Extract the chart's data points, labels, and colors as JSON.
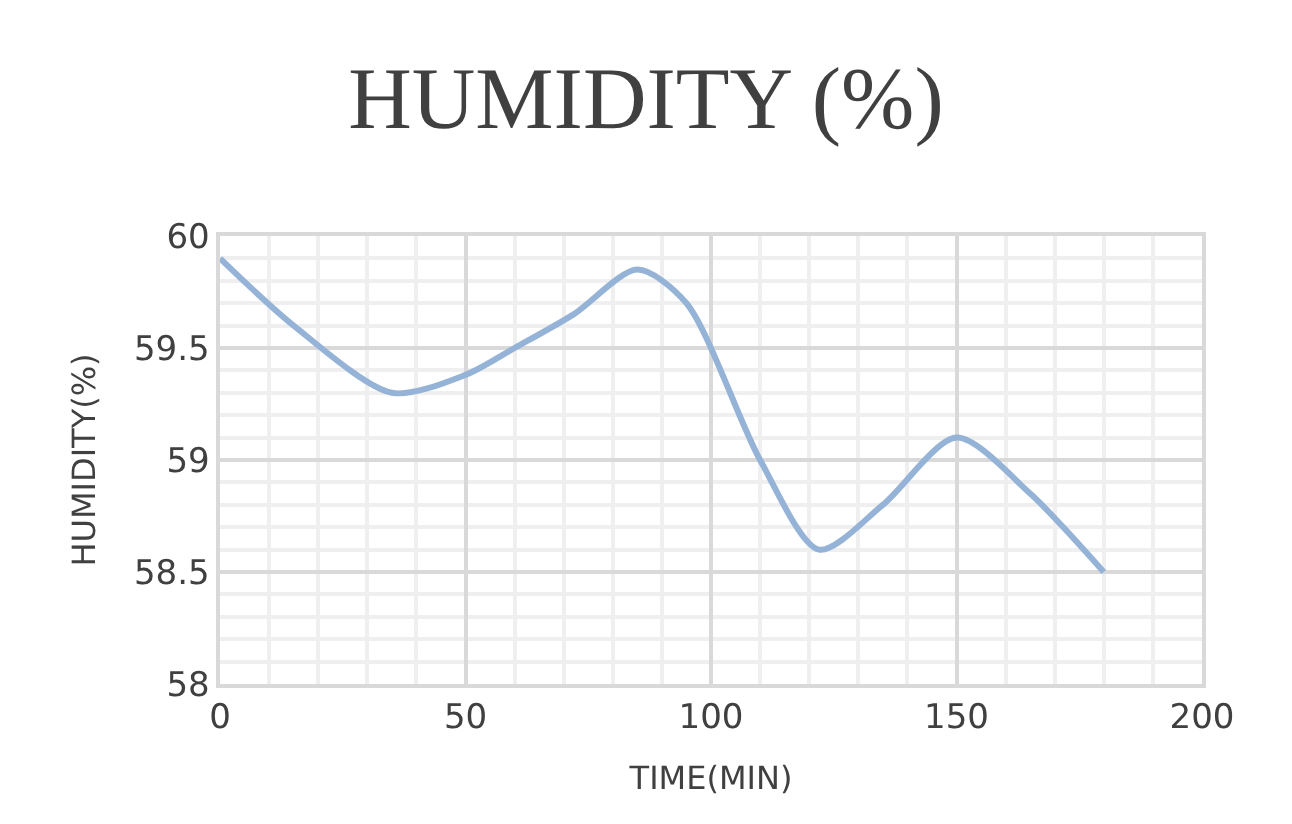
{
  "chart_data": {
    "type": "line",
    "title": "HUMIDITY (%)",
    "xlabel": "TIME(MIN)",
    "ylabel": "HUMIDITY(%)",
    "series": [
      {
        "color": "#95b3d7",
        "x": [
          0,
          15,
          35,
          50,
          60,
          72,
          85,
          95,
          110,
          122,
          135,
          150,
          165,
          180
        ],
        "values": [
          59.9,
          59.6,
          59.3,
          59.38,
          59.5,
          59.65,
          59.85,
          59.7,
          59.0,
          58.6,
          58.8,
          59.1,
          58.85,
          58.5
        ]
      }
    ],
    "xlim": [
      0,
      200
    ],
    "xticks": [
      0,
      50,
      100,
      150,
      200
    ],
    "ylim": [
      58,
      60
    ],
    "yticks": [
      58,
      58.5,
      59,
      59.5,
      60
    ],
    "grid": true,
    "marker": "none",
    "line_style": "solid"
  }
}
